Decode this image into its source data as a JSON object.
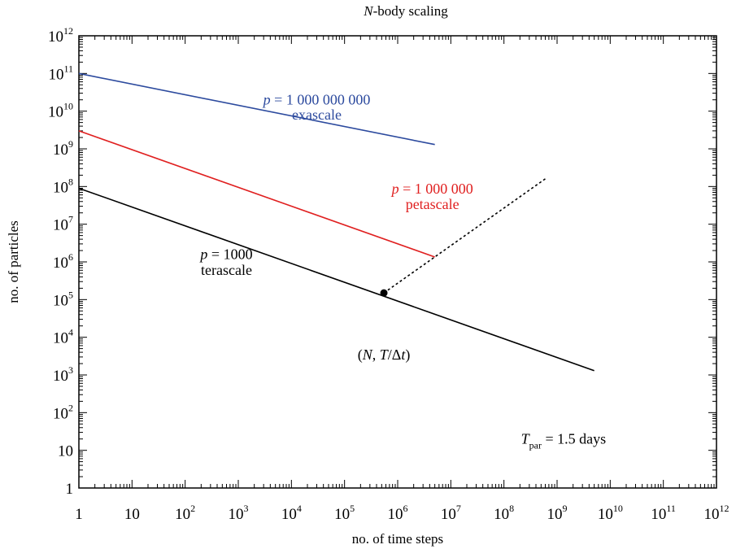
{
  "chart_data": {
    "type": "line",
    "title": "N-body scaling",
    "title_parts": {
      "italic": "N",
      "rest": "-body scaling"
    },
    "xlabel": "no. of time steps",
    "ylabel": "no. of particles",
    "xscale": "log",
    "yscale": "log",
    "xlim": [
      1,
      1000000000000
    ],
    "ylim": [
      1,
      1000000000000
    ],
    "grid": false,
    "x_ticks": [
      {
        "value": 1,
        "base": "1",
        "exp": ""
      },
      {
        "value": 10,
        "base": "10",
        "exp": ""
      },
      {
        "value": 100,
        "base": "10",
        "exp": "2"
      },
      {
        "value": 1000,
        "base": "10",
        "exp": "3"
      },
      {
        "value": 10000,
        "base": "10",
        "exp": "4"
      },
      {
        "value": 100000,
        "base": "10",
        "exp": "5"
      },
      {
        "value": 1000000,
        "base": "10",
        "exp": "6"
      },
      {
        "value": 10000000,
        "base": "10",
        "exp": "7"
      },
      {
        "value": 100000000,
        "base": "10",
        "exp": "8"
      },
      {
        "value": 1000000000,
        "base": "10",
        "exp": "9"
      },
      {
        "value": 10000000000,
        "base": "10",
        "exp": "10"
      },
      {
        "value": 100000000000,
        "base": "10",
        "exp": "11"
      },
      {
        "value": 1000000000000,
        "base": "10",
        "exp": "12"
      }
    ],
    "y_ticks": [
      {
        "value": 1,
        "base": "1",
        "exp": ""
      },
      {
        "value": 10,
        "base": "10",
        "exp": ""
      },
      {
        "value": 100,
        "base": "10",
        "exp": "2"
      },
      {
        "value": 1000,
        "base": "10",
        "exp": "3"
      },
      {
        "value": 10000,
        "base": "10",
        "exp": "4"
      },
      {
        "value": 100000,
        "base": "10",
        "exp": "5"
      },
      {
        "value": 1000000,
        "base": "10",
        "exp": "6"
      },
      {
        "value": 10000000,
        "base": "10",
        "exp": "7"
      },
      {
        "value": 100000000,
        "base": "10",
        "exp": "8"
      },
      {
        "value": 1000000000,
        "base": "10",
        "exp": "9"
      },
      {
        "value": 10000000000,
        "base": "10",
        "exp": "10"
      },
      {
        "value": 100000000000,
        "base": "10",
        "exp": "11"
      },
      {
        "value": 1000000000000,
        "base": "10",
        "exp": "12"
      }
    ],
    "series": [
      {
        "key": "exascale",
        "color": "#2c4a9e",
        "style": "solid",
        "x": [
          1,
          5000000
        ],
        "y": [
          100000000000,
          1300000000
        ]
      },
      {
        "key": "petascale",
        "color": "#e02020",
        "style": "solid",
        "x": [
          1,
          5000000
        ],
        "y": [
          3000000000,
          1350000
        ]
      },
      {
        "key": "terascale",
        "color": "#000000",
        "style": "solid",
        "x": [
          1,
          5000000000
        ],
        "y": [
          90000000,
          1300
        ]
      },
      {
        "key": "dotted-trend",
        "color": "#000000",
        "style": "dotted",
        "x": [
          550000,
          600000000
        ],
        "y": [
          150000,
          160000000
        ]
      }
    ],
    "points": [
      {
        "key": "operating-point",
        "x": 550000,
        "y": 150000,
        "color": "#000000"
      }
    ],
    "annotations": [
      {
        "key": "exascale-p",
        "color": "#2c4a9e",
        "anchor": "middle",
        "italic_prefix": "p",
        "text": " = 1 000 000 000",
        "x": 30000,
        "y": 15000000000
      },
      {
        "key": "exascale-name",
        "color": "#2c4a9e",
        "anchor": "middle",
        "italic_prefix": "",
        "text": "exascale",
        "x": 30000,
        "y": 6000000000
      },
      {
        "key": "petascale-p",
        "color": "#e02020",
        "anchor": "middle",
        "italic_prefix": "p",
        "text": " = 1 000 000",
        "x": 4500000,
        "y": 65000000
      },
      {
        "key": "petascale-name",
        "color": "#e02020",
        "anchor": "middle",
        "italic_prefix": "",
        "text": "petascale",
        "x": 4500000,
        "y": 25000000
      },
      {
        "key": "terascale-p",
        "color": "#000000",
        "anchor": "middle",
        "italic_prefix": "p",
        "text": " = 1000",
        "x": 600,
        "y": 1200000
      },
      {
        "key": "terascale-name",
        "color": "#000000",
        "anchor": "middle",
        "italic_prefix": "",
        "text": "terascale",
        "x": 600,
        "y": 450000
      }
    ],
    "point_label": {
      "open": "(",
      "n": "N",
      "sep": ", ",
      "t": "T",
      "rest": "/Δ",
      "dt": "t",
      "close": ")",
      "x": 550000,
      "y": 2600
    },
    "tpar_label": {
      "t": "T",
      "sub": "par",
      "rest": " = 1.5 days",
      "x": 5000000000,
      "y": 15
    }
  }
}
